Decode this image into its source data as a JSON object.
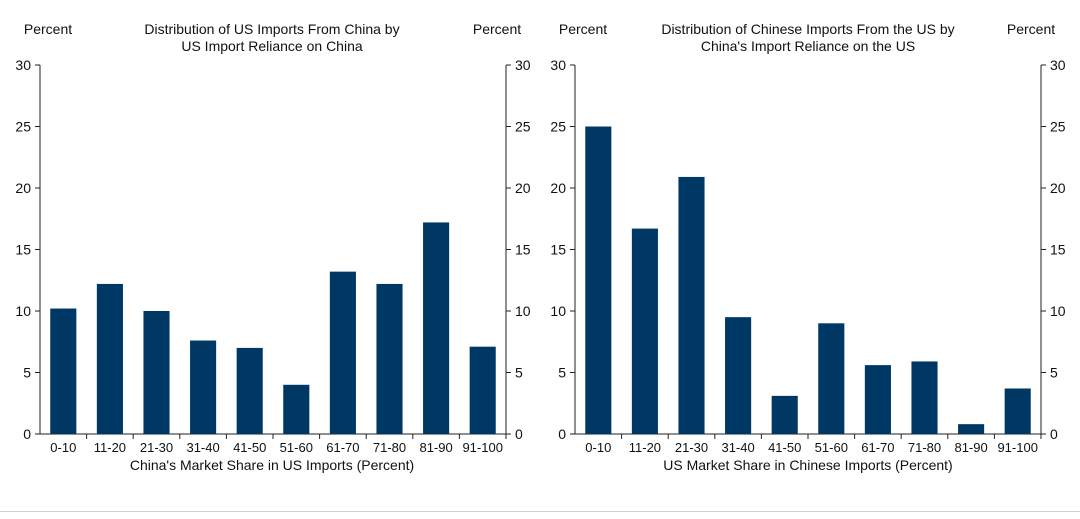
{
  "colors": {
    "bar": "#003865",
    "axis": "#222222",
    "text": "#111111"
  },
  "chart_data": [
    {
      "type": "bar",
      "title": "Distribution of US Imports From China by",
      "subtitle": "US Import Reliance on China",
      "left_axis_label": "Percent",
      "right_axis_label": "Percent",
      "xlabel": "China's Market Share in US Imports (Percent)",
      "ylim": [
        0,
        30
      ],
      "yticks": [
        0,
        5,
        10,
        15,
        20,
        25,
        30
      ],
      "categories": [
        "0-10",
        "11-20",
        "21-30",
        "31-40",
        "41-50",
        "51-60",
        "61-70",
        "71-80",
        "81-90",
        "91-100"
      ],
      "values": [
        10.2,
        12.2,
        10.0,
        7.6,
        7.0,
        4.0,
        13.2,
        12.2,
        17.2,
        7.1
      ]
    },
    {
      "type": "bar",
      "title": "Distribution of Chinese Imports From the US by",
      "subtitle": "China's Import Reliance on the US",
      "left_axis_label": "Percent",
      "right_axis_label": "Percent",
      "xlabel": "US Market Share in Chinese Imports (Percent)",
      "ylim": [
        0,
        30
      ],
      "yticks": [
        0,
        5,
        10,
        15,
        20,
        25,
        30
      ],
      "categories": [
        "0-10",
        "11-20",
        "21-30",
        "31-40",
        "41-50",
        "51-60",
        "61-70",
        "71-80",
        "81-90",
        "91-100"
      ],
      "values": [
        25.0,
        16.7,
        20.9,
        9.5,
        3.1,
        9.0,
        5.6,
        5.9,
        0.8,
        3.7
      ]
    }
  ]
}
